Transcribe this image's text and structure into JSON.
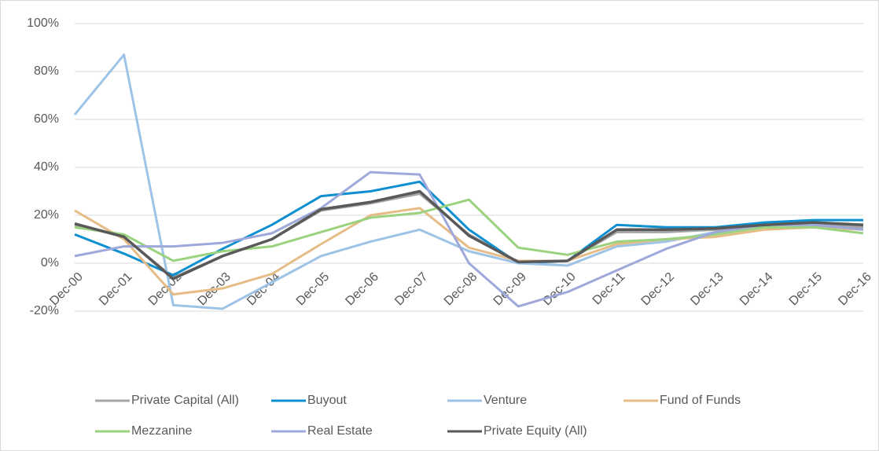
{
  "chart_data": {
    "type": "line",
    "categories": [
      "Dec-00",
      "Dec-01",
      "Dec-02",
      "Dec-03",
      "Dec-04",
      "Dec-05",
      "Dec-06",
      "Dec-07",
      "Dec-08",
      "Dec-09",
      "Dec-10",
      "Dec-11",
      "Dec-12",
      "Dec-13",
      "Dec-14",
      "Dec-15",
      "Dec-16"
    ],
    "ylim": [
      -20,
      100
    ],
    "yticks": [
      {
        "value": -20,
        "label": "-20%"
      },
      {
        "value": 0,
        "label": "0%"
      },
      {
        "value": 20,
        "label": "20%"
      },
      {
        "value": 40,
        "label": "40%"
      },
      {
        "value": 60,
        "label": "60%"
      },
      {
        "value": 80,
        "label": "80%"
      },
      {
        "value": 100,
        "label": "100%"
      }
    ],
    "grid": true,
    "legend": "bottom",
    "series": [
      {
        "name": "Private Capital (All)",
        "color": "#a5a5a5",
        "values": [
          16,
          11,
          -6,
          3,
          10,
          22,
          25,
          29,
          12,
          0.5,
          1,
          13,
          13,
          14,
          16,
          16,
          15
        ]
      },
      {
        "name": "Buyout",
        "color": "#0e8fcf",
        "values": [
          12,
          4,
          -5,
          6,
          16,
          28,
          30,
          34,
          14,
          0,
          1,
          16,
          15,
          15,
          17,
          18,
          18
        ]
      },
      {
        "name": "Venture",
        "color": "#9dc3e6",
        "values": [
          62,
          87,
          -17.5,
          -19,
          -8,
          3,
          9,
          14,
          5,
          0,
          -1,
          7,
          9,
          13,
          16,
          17,
          16
        ]
      },
      {
        "name": "Fund of Funds",
        "color": "#e6bc86",
        "values": [
          22,
          10,
          -13,
          -10.5,
          -4.5,
          8,
          20,
          23,
          6.5,
          1,
          1,
          8,
          10,
          11,
          14,
          15,
          14
        ]
      },
      {
        "name": "Mezzanine",
        "color": "#9ad27f",
        "values": [
          15,
          12,
          1,
          5,
          7,
          13,
          19,
          21,
          26.5,
          6.5,
          3.5,
          9,
          10,
          12,
          15,
          15,
          12.5
        ]
      },
      {
        "name": "Real Estate",
        "color": "#9fa8da",
        "values": [
          3,
          7,
          7,
          8.5,
          12.5,
          23,
          38,
          37,
          0,
          -18,
          -12,
          -3,
          6,
          13,
          16,
          16,
          14
        ]
      },
      {
        "name": "Private Equity (All)",
        "color": "#595959",
        "values": [
          16.5,
          11,
          -6.5,
          3,
          10,
          22.5,
          25.5,
          30,
          11.5,
          0.5,
          1,
          14,
          14,
          14.5,
          16,
          17,
          16
        ]
      }
    ]
  }
}
